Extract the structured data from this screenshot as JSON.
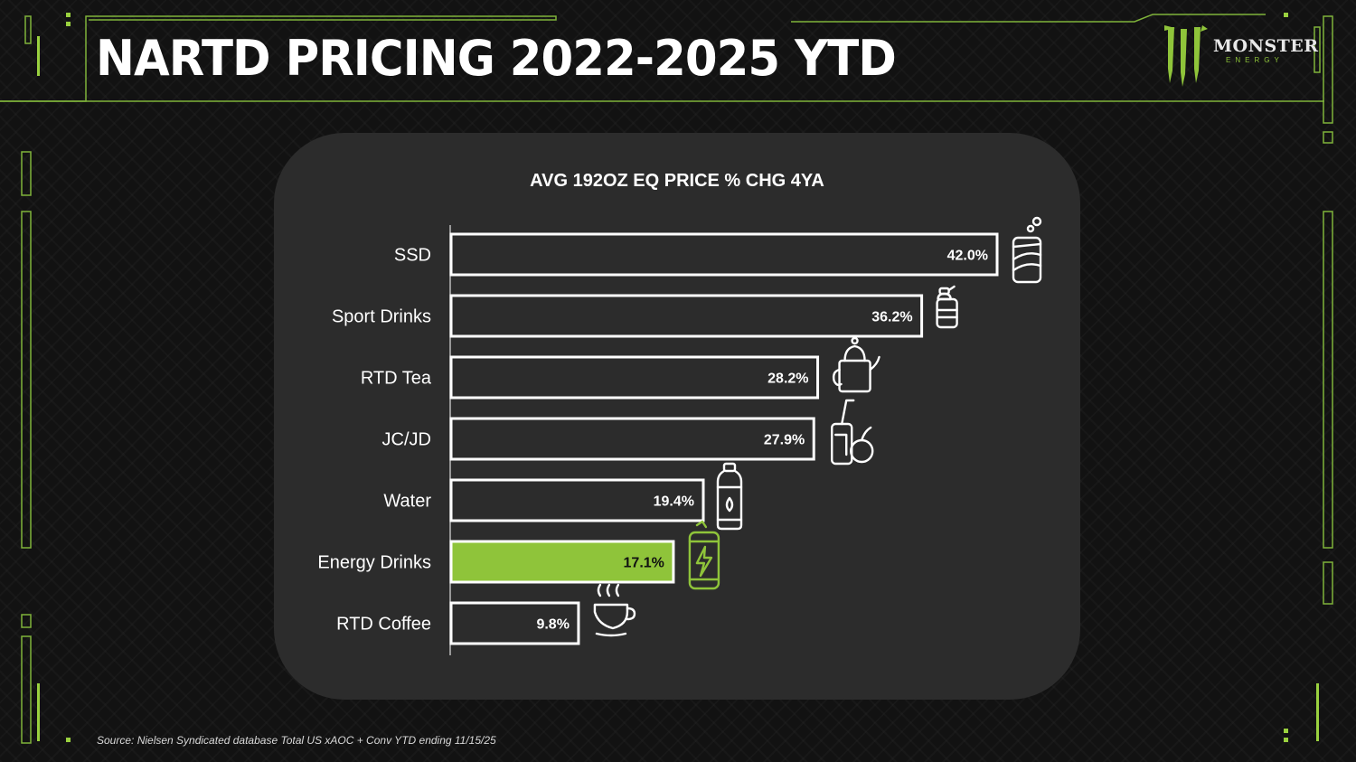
{
  "title": "NARTD PRICING 2022-2025 YTD",
  "logo": {
    "word": "MONSTER",
    "sub": "ENERGY",
    "accent_color": "#8fc43a"
  },
  "source": "Source: Nielsen Syndicated database Total US xAOC + Conv YTD ending 11/15/25",
  "chart_data": {
    "type": "bar",
    "orientation": "horizontal",
    "title": "AVG 192OZ EQ PRICE % CHG 4YA",
    "categories": [
      "SSD",
      "Sport Drinks",
      "RTD Tea",
      "JC/JD",
      "Water",
      "Energy Drinks",
      "RTD Coffee"
    ],
    "values": [
      42.0,
      36.2,
      28.2,
      27.9,
      19.4,
      17.1,
      9.8
    ],
    "value_labels": [
      "42.0%",
      "36.2%",
      "28.2%",
      "27.9%",
      "19.4%",
      "17.1%",
      "9.8%"
    ],
    "icons": [
      "soda-can-icon",
      "sport-bottle-icon",
      "tea-kettle-icon",
      "juice-glass-icon",
      "water-bottle-icon",
      "energy-can-icon",
      "coffee-cup-icon"
    ],
    "highlight": "Energy Drinks",
    "highlight_color": "#8fc43a",
    "bar_fill": "#2c2c2c",
    "bar_outline": "#ffffff",
    "xlim": [
      0,
      42
    ],
    "grid": false,
    "legend": "none"
  }
}
